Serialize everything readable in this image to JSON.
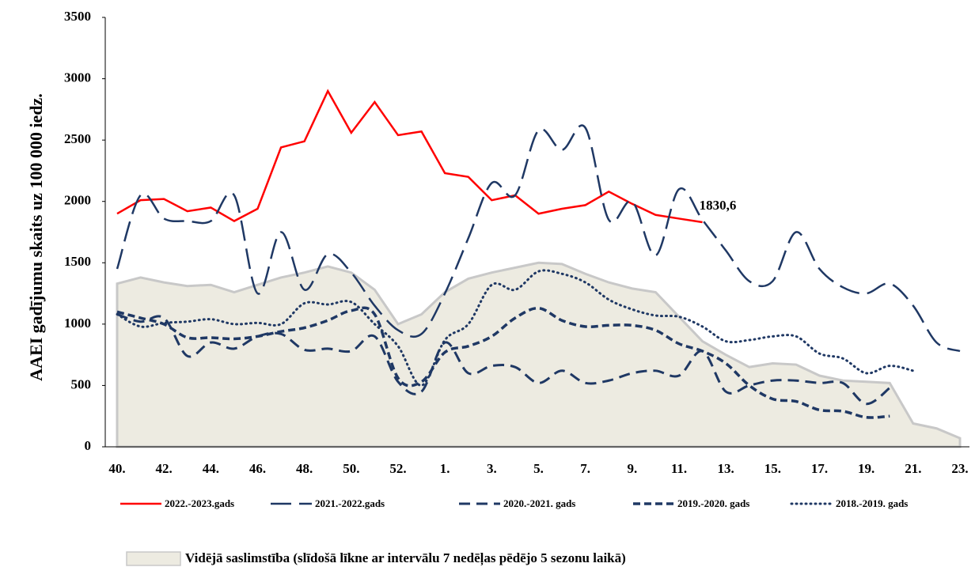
{
  "chart_data": {
    "type": "line",
    "y_label": "AAEI gadījumu skaits uz 100 000 iedz.",
    "categories": [
      "40.",
      null,
      "42.",
      null,
      "44.",
      null,
      "46.",
      null,
      "48.",
      null,
      "50.",
      null,
      "52.",
      null,
      "1.",
      null,
      "3.",
      null,
      "5.",
      null,
      "7.",
      null,
      "9.",
      null,
      "11.",
      null,
      "13.",
      null,
      "15.",
      null,
      "17.",
      null,
      "19.",
      null,
      "21.",
      null,
      "23."
    ],
    "ylim": [
      0,
      3500
    ],
    "yticks": [
      0,
      500,
      1000,
      1500,
      2000,
      2500,
      3000,
      3500
    ],
    "series": [
      {
        "name": "2022.-2023.gads",
        "color": "#ff0000",
        "values": [
          1900,
          2010,
          2020,
          1920,
          1950,
          1840,
          1940,
          2440,
          2490,
          2900,
          2560,
          2810,
          2540,
          2570,
          2230,
          2200,
          2010,
          2050,
          1900,
          1940,
          1970,
          2080,
          1980,
          1890,
          1860,
          1830.6,
          null,
          null,
          null,
          null,
          null,
          null,
          null,
          null,
          null,
          null,
          null
        ],
        "value_labels": [
          null,
          null,
          null,
          null,
          null,
          null,
          null,
          null,
          null,
          null,
          null,
          null,
          null,
          null,
          null,
          null,
          null,
          null,
          null,
          null,
          null,
          null,
          null,
          null,
          null,
          "1830,6",
          null,
          null,
          null,
          null,
          null,
          null,
          null,
          null,
          null,
          null,
          null
        ]
      },
      {
        "name": "2021.-2022.gads",
        "color": "#1f3864",
        "values": [
          1450,
          2050,
          1860,
          1840,
          1840,
          2050,
          1250,
          1750,
          1280,
          1570,
          1420,
          1150,
          950,
          920,
          1250,
          1700,
          2150,
          2050,
          2580,
          2420,
          2600,
          1850,
          2000,
          1560,
          2100,
          1850,
          1600,
          1350,
          1350,
          1750,
          1450,
          1300,
          1250,
          1330,
          1150,
          850,
          780
        ]
      },
      {
        "name": "2020.-2021. gads",
        "color": "#1f3864",
        "values": [
          1080,
          1020,
          1050,
          740,
          850,
          800,
          900,
          920,
          790,
          800,
          780,
          900,
          530,
          450,
          850,
          600,
          660,
          650,
          520,
          620,
          520,
          540,
          600,
          620,
          580,
          780,
          450,
          500,
          540,
          540,
          520,
          520,
          350,
          480,
          null,
          null,
          null
        ]
      },
      {
        "name": "2019.-2020. gads",
        "color": "#1f3864",
        "values": [
          1100,
          1050,
          1000,
          890,
          890,
          880,
          900,
          940,
          970,
          1030,
          1110,
          1080,
          560,
          530,
          770,
          820,
          900,
          1050,
          1130,
          1030,
          980,
          990,
          990,
          950,
          840,
          780,
          680,
          500,
          390,
          370,
          300,
          290,
          240,
          250,
          null,
          null,
          null
        ]
      },
      {
        "name": "2018.-2019. gads",
        "color": "#1f3864",
        "values": [
          1080,
          980,
          1010,
          1020,
          1040,
          1000,
          1010,
          1000,
          1170,
          1160,
          1180,
          1000,
          820,
          500,
          870,
          1000,
          1320,
          1280,
          1430,
          1410,
          1340,
          1200,
          1120,
          1070,
          1060,
          980,
          860,
          870,
          900,
          900,
          760,
          720,
          600,
          660,
          620,
          null,
          null
        ]
      }
    ],
    "area": {
      "name": "Vidējā saslimstība (slīdošā līkne ar intervālu 7 nedēļas pēdējo 5 sezonu laikā)",
      "color": "#edebe1",
      "values": [
        1330,
        1380,
        1340,
        1310,
        1320,
        1260,
        1320,
        1380,
        1420,
        1470,
        1420,
        1280,
        1000,
        1080,
        1260,
        1370,
        1420,
        1460,
        1500,
        1490,
        1410,
        1340,
        1290,
        1260,
        1060,
        860,
        750,
        650,
        680,
        670,
        580,
        540,
        530,
        520,
        190,
        150,
        70
      ]
    }
  }
}
